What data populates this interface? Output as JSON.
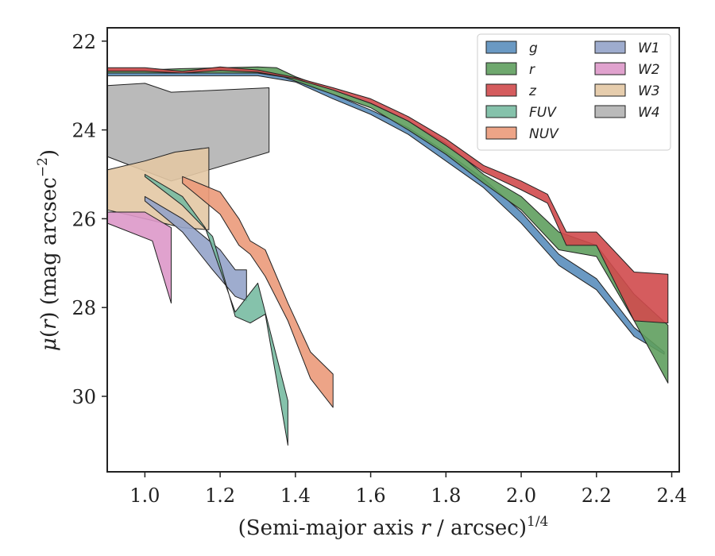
{
  "chart_data": {
    "type": "area",
    "xlabel": "(Semi-major axis r / arcsec)^1/4",
    "xlabel_parts": {
      "lead": "(Semi-major axis ",
      "var": "r",
      "mid": " / arcsec)",
      "sup": "1/4"
    },
    "ylabel": "μ(r) (mag arcsec^-2)",
    "ylabel_parts": {
      "mu": "μ",
      "r": "r",
      "mid": ") (mag arcsec",
      "sup": "−2",
      "close": ")"
    },
    "xlim": [
      0.9,
      2.42
    ],
    "ylim": [
      31.7,
      21.7
    ],
    "y_inverted": true,
    "xticks": [
      1.0,
      1.2,
      1.4,
      1.6,
      1.8,
      2.0,
      2.2,
      2.4
    ],
    "xtick_labels": [
      "1.0",
      "1.2",
      "1.4",
      "1.6",
      "1.8",
      "2.0",
      "2.2",
      "2.4"
    ],
    "yticks": [
      22,
      24,
      26,
      28,
      30
    ],
    "ytick_labels": [
      "22",
      "24",
      "26",
      "28",
      "30"
    ],
    "grid": false,
    "legend_position": "top-right",
    "legend_columns": 2,
    "series": [
      {
        "name": "W4",
        "color": "#b3b3b3",
        "upper": [
          [
            0.9,
            23.0
          ],
          [
            1.0,
            22.95
          ],
          [
            1.07,
            23.15
          ],
          [
            1.33,
            23.05
          ]
        ],
        "lower": [
          [
            0.9,
            24.6
          ],
          [
            1.07,
            25.15
          ],
          [
            1.33,
            24.5
          ]
        ]
      },
      {
        "name": "W3",
        "color": "#e3c8a4",
        "upper": [
          [
            0.9,
            24.9
          ],
          [
            1.0,
            24.7
          ],
          [
            1.08,
            24.5
          ],
          [
            1.17,
            24.4
          ]
        ],
        "lower": [
          [
            0.9,
            25.8
          ],
          [
            1.0,
            26.0
          ],
          [
            1.1,
            26.2
          ],
          [
            1.17,
            26.25
          ]
        ]
      },
      {
        "name": "W2",
        "color": "#dd98c9",
        "upper": [
          [
            0.9,
            25.85
          ],
          [
            1.0,
            25.85
          ],
          [
            1.07,
            26.2
          ]
        ],
        "lower": [
          [
            0.9,
            26.1
          ],
          [
            1.02,
            26.5
          ],
          [
            1.07,
            27.9
          ]
        ]
      },
      {
        "name": "W1",
        "color": "#93a3c9",
        "upper": [
          [
            1.0,
            25.5
          ],
          [
            1.1,
            26.0
          ],
          [
            1.2,
            26.7
          ],
          [
            1.24,
            27.15
          ],
          [
            1.27,
            27.15
          ]
        ],
        "lower": [
          [
            1.0,
            25.6
          ],
          [
            1.1,
            26.3
          ],
          [
            1.18,
            27.15
          ],
          [
            1.24,
            27.75
          ],
          [
            1.27,
            27.85
          ]
        ]
      },
      {
        "name": "FUV",
        "color": "#78bba2",
        "upper": [
          [
            1.0,
            25.0
          ],
          [
            1.1,
            25.5
          ],
          [
            1.16,
            26.2
          ],
          [
            1.24,
            28.1
          ],
          [
            1.3,
            27.45
          ],
          [
            1.38,
            30.1
          ]
        ],
        "lower": [
          [
            1.0,
            25.05
          ],
          [
            1.1,
            25.7
          ],
          [
            1.18,
            26.4
          ],
          [
            1.24,
            28.2
          ],
          [
            1.28,
            28.35
          ],
          [
            1.32,
            28.15
          ],
          [
            1.38,
            31.1
          ]
        ]
      },
      {
        "name": "NUV",
        "color": "#eb9a7a",
        "upper": [
          [
            1.1,
            25.05
          ],
          [
            1.2,
            25.4
          ],
          [
            1.25,
            26.0
          ],
          [
            1.28,
            26.5
          ],
          [
            1.32,
            26.7
          ],
          [
            1.38,
            27.9
          ],
          [
            1.44,
            29.0
          ],
          [
            1.5,
            29.5
          ]
        ],
        "lower": [
          [
            1.1,
            25.2
          ],
          [
            1.2,
            25.9
          ],
          [
            1.25,
            26.6
          ],
          [
            1.28,
            26.8
          ],
          [
            1.32,
            27.3
          ],
          [
            1.38,
            28.3
          ],
          [
            1.44,
            29.6
          ],
          [
            1.5,
            30.25
          ]
        ]
      },
      {
        "name": "g",
        "color": "#5a8ebd",
        "upper": [
          [
            0.9,
            22.72
          ],
          [
            1.0,
            22.72
          ],
          [
            1.1,
            22.72
          ],
          [
            1.2,
            22.72
          ],
          [
            1.3,
            22.72
          ],
          [
            1.4,
            22.85
          ],
          [
            1.5,
            23.2
          ],
          [
            1.6,
            23.55
          ],
          [
            1.7,
            23.95
          ],
          [
            1.8,
            24.5
          ],
          [
            1.9,
            25.1
          ],
          [
            2.0,
            25.85
          ],
          [
            2.1,
            26.8
          ],
          [
            2.2,
            27.35
          ],
          [
            2.3,
            28.45
          ],
          [
            2.38,
            29.0
          ]
        ],
        "lower": [
          [
            0.9,
            22.78
          ],
          [
            1.0,
            22.78
          ],
          [
            1.1,
            22.78
          ],
          [
            1.2,
            22.78
          ],
          [
            1.3,
            22.78
          ],
          [
            1.4,
            22.92
          ],
          [
            1.5,
            23.3
          ],
          [
            1.6,
            23.65
          ],
          [
            1.7,
            24.1
          ],
          [
            1.8,
            24.7
          ],
          [
            1.9,
            25.3
          ],
          [
            2.0,
            26.1
          ],
          [
            2.1,
            27.05
          ],
          [
            2.2,
            27.6
          ],
          [
            2.3,
            28.65
          ],
          [
            2.38,
            29.05
          ]
        ]
      },
      {
        "name": "r",
        "color": "#5f9f5e",
        "upper": [
          [
            0.9,
            22.65
          ],
          [
            1.0,
            22.65
          ],
          [
            1.1,
            22.62
          ],
          [
            1.2,
            22.6
          ],
          [
            1.3,
            22.58
          ],
          [
            1.35,
            22.6
          ],
          [
            1.4,
            22.8
          ],
          [
            1.5,
            23.1
          ],
          [
            1.6,
            23.4
          ],
          [
            1.7,
            23.8
          ],
          [
            1.8,
            24.3
          ],
          [
            1.9,
            25.0
          ],
          [
            2.0,
            25.5
          ],
          [
            2.1,
            26.3
          ],
          [
            2.2,
            26.6
          ],
          [
            2.3,
            27.7
          ],
          [
            2.39,
            28.4
          ]
        ],
        "lower": [
          [
            0.9,
            22.72
          ],
          [
            1.0,
            22.72
          ],
          [
            1.1,
            22.72
          ],
          [
            1.2,
            22.72
          ],
          [
            1.3,
            22.72
          ],
          [
            1.35,
            22.75
          ],
          [
            1.4,
            22.9
          ],
          [
            1.5,
            23.2
          ],
          [
            1.6,
            23.5
          ],
          [
            1.7,
            24.0
          ],
          [
            1.8,
            24.55
          ],
          [
            1.9,
            25.2
          ],
          [
            2.0,
            25.8
          ],
          [
            2.1,
            26.7
          ],
          [
            2.2,
            26.85
          ],
          [
            2.3,
            28.3
          ],
          [
            2.39,
            29.7
          ]
        ]
      },
      {
        "name": "z",
        "color": "#d04a4d",
        "upper": [
          [
            0.9,
            22.6
          ],
          [
            1.0,
            22.6
          ],
          [
            1.1,
            22.68
          ],
          [
            1.2,
            22.58
          ],
          [
            1.3,
            22.65
          ],
          [
            1.4,
            22.82
          ],
          [
            1.5,
            23.05
          ],
          [
            1.6,
            23.3
          ],
          [
            1.7,
            23.7
          ],
          [
            1.8,
            24.2
          ],
          [
            1.9,
            24.8
          ],
          [
            2.0,
            25.15
          ],
          [
            2.07,
            25.45
          ],
          [
            2.12,
            26.3
          ],
          [
            2.2,
            26.3
          ],
          [
            2.3,
            27.2
          ],
          [
            2.39,
            27.25
          ]
        ],
        "lower": [
          [
            0.9,
            22.68
          ],
          [
            1.0,
            22.68
          ],
          [
            1.1,
            22.72
          ],
          [
            1.2,
            22.66
          ],
          [
            1.3,
            22.7
          ],
          [
            1.4,
            22.85
          ],
          [
            1.5,
            23.1
          ],
          [
            1.6,
            23.4
          ],
          [
            1.7,
            23.8
          ],
          [
            1.8,
            24.35
          ],
          [
            1.9,
            24.95
          ],
          [
            2.0,
            25.35
          ],
          [
            2.07,
            25.65
          ],
          [
            2.12,
            26.6
          ],
          [
            2.2,
            26.6
          ],
          [
            2.3,
            28.3
          ],
          [
            2.39,
            28.35
          ]
        ]
      }
    ],
    "legend": [
      {
        "name": "g",
        "color": "#5a8ebd"
      },
      {
        "name": "r",
        "color": "#5f9f5e"
      },
      {
        "name": "z",
        "color": "#d04a4d"
      },
      {
        "name": "FUV",
        "color": "#78bba2"
      },
      {
        "name": "NUV",
        "color": "#eb9a7a"
      },
      {
        "name": "W1",
        "color": "#93a3c9"
      },
      {
        "name": "W2",
        "color": "#dd98c9"
      },
      {
        "name": "W3",
        "color": "#e3c8a4"
      },
      {
        "name": "W4",
        "color": "#b3b3b3"
      }
    ]
  }
}
